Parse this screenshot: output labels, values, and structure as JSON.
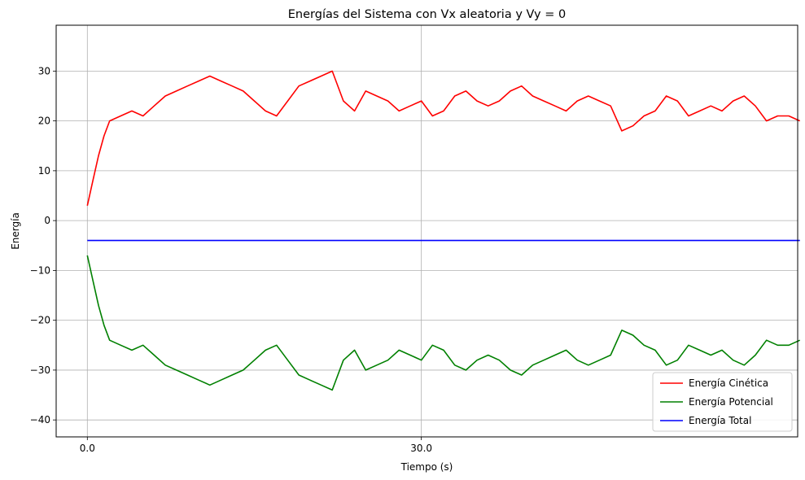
{
  "chart_data": {
    "type": "line",
    "title": "Energías del Sistema con Vx aleatoria y Vy = 0",
    "xlabel": "Tiempo (s)",
    "ylabel": "Energía",
    "xlim": [
      -2.8,
      63.8
    ],
    "ylim": [
      -43.4,
      39.2
    ],
    "x_ticks": [
      0,
      30
    ],
    "x_tick_labels": [
      "0.0",
      "30.0"
    ],
    "y_ticks": [
      -40,
      -30,
      -20,
      -10,
      0,
      10,
      20,
      30
    ],
    "y_tick_labels": [
      "−40",
      "−30",
      "−20",
      "−10",
      "0",
      "10",
      "20",
      "30"
    ],
    "grid": true,
    "legend_position": "lower-right",
    "x": [
      0,
      0.5,
      1,
      1.5,
      2,
      3,
      4,
      5,
      6,
      7,
      8,
      9,
      10,
      11,
      12,
      13,
      14,
      15,
      16,
      17,
      18,
      19,
      20,
      21,
      22,
      23,
      24,
      25,
      26,
      27,
      28,
      29,
      30,
      31,
      32,
      33,
      34,
      35,
      36,
      37,
      38,
      39,
      40,
      41,
      42,
      43,
      44,
      45,
      46,
      47,
      48,
      49,
      50,
      51,
      52,
      53,
      54,
      55,
      56,
      57,
      58,
      59,
      60,
      61,
      62,
      63,
      64
    ],
    "series": [
      {
        "name": "Energía Cinética",
        "color": "#ff0000",
        "values": [
          3,
          8,
          13,
          17,
          20,
          21,
          22,
          21,
          23,
          25,
          26,
          27,
          28,
          29,
          28,
          27,
          26,
          24,
          22,
          21,
          24,
          27,
          28,
          29,
          30,
          24,
          22,
          26,
          25,
          24,
          22,
          23,
          24,
          21,
          22,
          25,
          26,
          24,
          23,
          24,
          26,
          27,
          25,
          24,
          23,
          22,
          24,
          25,
          24,
          23,
          18,
          19,
          21,
          22,
          25,
          24,
          21,
          22,
          23,
          22,
          24,
          25,
          23,
          20,
          21,
          21,
          20
        ]
      },
      {
        "name": "Energía Potencial",
        "color": "#008000",
        "values": [
          -7,
          -12,
          -17,
          -21,
          -24,
          -25,
          -26,
          -25,
          -27,
          -29,
          -30,
          -31,
          -32,
          -33,
          -32,
          -31,
          -30,
          -28,
          -26,
          -25,
          -28,
          -31,
          -32,
          -33,
          -34,
          -28,
          -26,
          -30,
          -29,
          -28,
          -26,
          -27,
          -28,
          -25,
          -26,
          -29,
          -30,
          -28,
          -27,
          -28,
          -30,
          -31,
          -29,
          -28,
          -27,
          -26,
          -28,
          -29,
          -28,
          -27,
          -22,
          -23,
          -25,
          -26,
          -29,
          -28,
          -25,
          -26,
          -27,
          -26,
          -28,
          -29,
          -27,
          -24,
          -25,
          -25,
          -24
        ]
      },
      {
        "name": "Energía Total",
        "color": "#0000ff",
        "values": [
          -4,
          -4,
          -4,
          -4,
          -4,
          -4,
          -4,
          -4,
          -4,
          -4,
          -4,
          -4,
          -4,
          -4,
          -4,
          -4,
          -4,
          -4,
          -4,
          -4,
          -4,
          -4,
          -4,
          -4,
          -4,
          -4,
          -4,
          -4,
          -4,
          -4,
          -4,
          -4,
          -4,
          -4,
          -4,
          -4,
          -4,
          -4,
          -4,
          -4,
          -4,
          -4,
          -4,
          -4,
          -4,
          -4,
          -4,
          -4,
          -4,
          -4,
          -4,
          -4,
          -4,
          -4,
          -4,
          -4,
          -4,
          -4,
          -4,
          -4,
          -4,
          -4,
          -4,
          -4,
          -4,
          -4,
          -4
        ]
      }
    ]
  }
}
